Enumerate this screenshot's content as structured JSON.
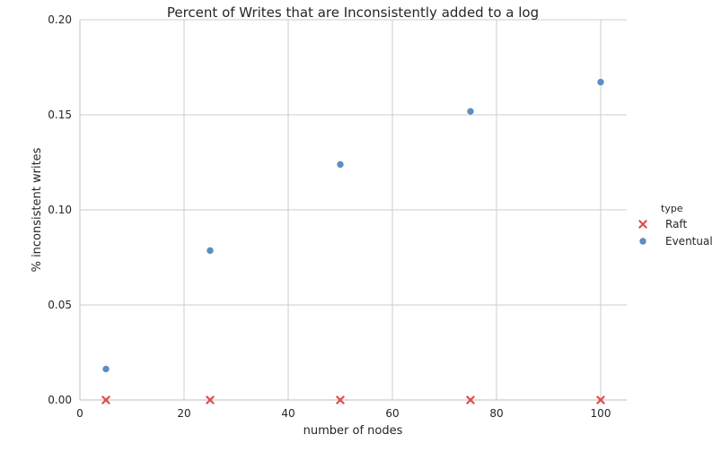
{
  "chart_data": {
    "type": "scatter",
    "title": "Percent of Writes that are Inconsistently added to a log",
    "xlabel": "number of nodes",
    "ylabel": "% inconsistent writes",
    "xlim": [
      0,
      105
    ],
    "ylim": [
      0.0,
      0.2
    ],
    "xticks": [
      0,
      20,
      40,
      60,
      80,
      100
    ],
    "xtick_labels": [
      "0",
      "20",
      "40",
      "60",
      "80",
      "100"
    ],
    "yticks": [
      0.0,
      0.05,
      0.1,
      0.15,
      0.2
    ],
    "ytick_labels": [
      "0.00",
      "0.05",
      "0.10",
      "0.15",
      "0.20"
    ],
    "grid": true,
    "legend": {
      "title": "type",
      "placement": "right"
    },
    "series": [
      {
        "name": "Raft",
        "marker": "x",
        "color": "#e24a4a",
        "x": [
          5,
          25,
          50,
          75,
          100
        ],
        "y": [
          0.0,
          0.0,
          0.0,
          0.0,
          0.0
        ]
      },
      {
        "name": "Eventual",
        "marker": "circle",
        "color": "#5b8ec2",
        "x": [
          5,
          25,
          50,
          75,
          100
        ],
        "y": [
          0.0163,
          0.0786,
          0.1239,
          0.1518,
          0.1672
        ]
      }
    ]
  }
}
